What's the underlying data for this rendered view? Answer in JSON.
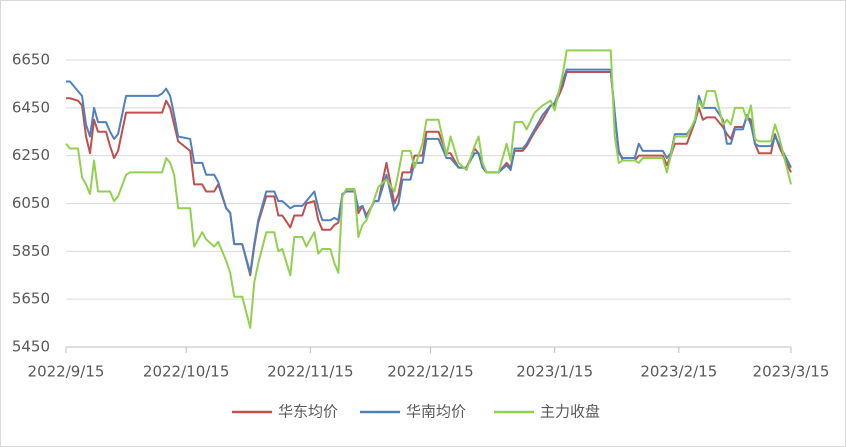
{
  "chart_data": {
    "type": "line",
    "x": [
      "2022/9/15",
      "2022/9/16",
      "2022/9/18",
      "2022/9/19",
      "2022/9/20",
      "2022/9/21",
      "2022/9/22",
      "2022/9/23",
      "2022/9/25",
      "2022/9/26",
      "2022/9/27",
      "2022/9/28",
      "2022/9/30",
      "2022/10/1",
      "2022/10/8",
      "2022/10/9",
      "2022/10/10",
      "2022/10/11",
      "2022/10/12",
      "2022/10/13",
      "2022/10/16",
      "2022/10/17",
      "2022/10/19",
      "2022/10/20",
      "2022/10/22",
      "2022/10/23",
      "2022/10/25",
      "2022/10/26",
      "2022/10/27",
      "2022/10/29",
      "2022/10/31",
      "2022/11/1",
      "2022/11/2",
      "2022/11/4",
      "2022/11/6",
      "2022/11/7",
      "2022/11/8",
      "2022/11/10",
      "2022/11/11",
      "2022/11/13",
      "2022/11/14",
      "2022/11/16",
      "2022/11/17",
      "2022/11/18",
      "2022/11/20",
      "2022/11/21",
      "2022/11/22",
      "2022/11/23",
      "2022/11/24",
      "2022/11/26",
      "2022/11/27",
      "2022/11/28",
      "2022/11/29",
      "2022/12/1",
      "2022/12/2",
      "2022/12/4",
      "2022/12/6",
      "2022/12/7",
      "2022/12/8",
      "2022/12/10",
      "2022/12/11",
      "2022/12/13",
      "2022/12/14",
      "2022/12/17",
      "2022/12/19",
      "2022/12/20",
      "2022/12/22",
      "2022/12/24",
      "2022/12/26",
      "2022/12/27",
      "2022/12/28",
      "2022/12/29",
      "2023/1/1",
      "2023/1/3",
      "2023/1/4",
      "2023/1/5",
      "2023/1/7",
      "2023/1/8",
      "2023/1/10",
      "2023/1/12",
      "2023/1/14",
      "2023/1/15",
      "2023/1/17",
      "2023/1/18",
      "2023/1/29",
      "2023/1/30",
      "2023/1/31",
      "2023/2/1",
      "2023/2/4",
      "2023/2/5",
      "2023/2/6",
      "2023/2/11",
      "2023/2/12",
      "2023/2/13",
      "2023/2/14",
      "2023/2/17",
      "2023/2/19",
      "2023/2/20",
      "2023/2/21",
      "2023/2/22",
      "2023/2/24",
      "2023/2/26",
      "2023/2/27",
      "2023/2/28",
      "2023/3/1",
      "2023/3/3",
      "2023/3/4",
      "2023/3/5",
      "2023/3/6",
      "2023/3/7",
      "2023/3/10",
      "2023/3/11",
      "2023/3/12",
      "2023/3/15"
    ],
    "series": [
      {
        "name": "华东均价",
        "color": "#c0504d",
        "values": [
          6490,
          6490,
          6480,
          6460,
          6330,
          6260,
          6400,
          6350,
          6350,
          6290,
          6240,
          6270,
          6430,
          6430,
          6430,
          6430,
          6480,
          6450,
          6380,
          6310,
          6270,
          6130,
          6130,
          6100,
          6100,
          6130,
          6030,
          6010,
          5880,
          5880,
          5750,
          5870,
          5970,
          6080,
          6080,
          6000,
          6000,
          5950,
          6000,
          6000,
          6050,
          6060,
          5980,
          5940,
          5940,
          5960,
          5970,
          6080,
          6110,
          6110,
          6010,
          6040,
          6000,
          6060,
          6060,
          6220,
          6050,
          6090,
          6180,
          6180,
          6250,
          6250,
          6350,
          6350,
          6260,
          6260,
          6200,
          6200,
          6280,
          6260,
          6200,
          6180,
          6180,
          6220,
          6200,
          6270,
          6270,
          6290,
          6350,
          6400,
          6460,
          6460,
          6540,
          6600,
          6600,
          6420,
          6270,
          6230,
          6230,
          6250,
          6250,
          6250,
          6210,
          6250,
          6300,
          6300,
          6390,
          6450,
          6400,
          6410,
          6410,
          6370,
          6340,
          6320,
          6370,
          6370,
          6410,
          6400,
          6300,
          6260,
          6260,
          6340,
          6290,
          6180
        ]
      },
      {
        "name": "华南均价",
        "color": "#4f81bd",
        "values": [
          6560,
          6560,
          6520,
          6500,
          6380,
          6330,
          6450,
          6390,
          6390,
          6350,
          6320,
          6340,
          6500,
          6500,
          6500,
          6510,
          6530,
          6500,
          6420,
          6330,
          6320,
          6220,
          6220,
          6170,
          6170,
          6140,
          6030,
          6010,
          5880,
          5880,
          5760,
          5880,
          5980,
          6100,
          6100,
          6060,
          6060,
          6030,
          6040,
          6040,
          6060,
          6100,
          6030,
          5980,
          5980,
          5990,
          5980,
          6090,
          6100,
          6100,
          6030,
          6040,
          5990,
          6060,
          6060,
          6170,
          6020,
          6050,
          6150,
          6150,
          6220,
          6220,
          6320,
          6320,
          6240,
          6240,
          6200,
          6200,
          6260,
          6260,
          6200,
          6180,
          6180,
          6210,
          6190,
          6280,
          6280,
          6300,
          6360,
          6420,
          6460,
          6470,
          6560,
          6610,
          6610,
          6430,
          6260,
          6240,
          6240,
          6300,
          6270,
          6270,
          6240,
          6260,
          6340,
          6340,
          6390,
          6500,
          6450,
          6450,
          6450,
          6400,
          6300,
          6300,
          6360,
          6360,
          6420,
          6380,
          6300,
          6290,
          6290,
          6330,
          6300,
          6200
        ]
      },
      {
        "name": "主力收盘",
        "color": "#92d050",
        "values": [
          6300,
          6280,
          6280,
          6160,
          6130,
          6090,
          6230,
          6100,
          6100,
          6100,
          6060,
          6080,
          6170,
          6180,
          6180,
          6180,
          6240,
          6220,
          6170,
          6030,
          6030,
          5870,
          5930,
          5900,
          5870,
          5890,
          5810,
          5760,
          5660,
          5660,
          5530,
          5720,
          5800,
          5930,
          5930,
          5850,
          5860,
          5750,
          5910,
          5910,
          5870,
          5930,
          5840,
          5860,
          5860,
          5800,
          5760,
          6080,
          6110,
          6110,
          5910,
          5960,
          5980,
          6070,
          6120,
          6150,
          6100,
          6180,
          6270,
          6270,
          6200,
          6300,
          6400,
          6400,
          6250,
          6330,
          6220,
          6190,
          6290,
          6330,
          6220,
          6180,
          6180,
          6300,
          6230,
          6390,
          6390,
          6360,
          6430,
          6460,
          6480,
          6440,
          6590,
          6690,
          6690,
          6330,
          6220,
          6230,
          6230,
          6220,
          6240,
          6240,
          6180,
          6250,
          6330,
          6330,
          6400,
          6480,
          6450,
          6520,
          6520,
          6380,
          6400,
          6380,
          6450,
          6450,
          6400,
          6460,
          6320,
          6310,
          6310,
          6380,
          6330,
          6130
        ]
      }
    ],
    "xlim": [
      "2022/9/15",
      "2023/3/15"
    ],
    "xticks": [
      "2022/9/15",
      "2022/10/15",
      "2022/11/15",
      "2022/12/15",
      "2023/1/15",
      "2023/2/15",
      "2023/3/15"
    ],
    "ylim": [
      5450,
      6650
    ],
    "yticks": [
      5450,
      5650,
      5850,
      6050,
      6250,
      6450,
      6650
    ],
    "grid": true,
    "legend": "bottom"
  }
}
